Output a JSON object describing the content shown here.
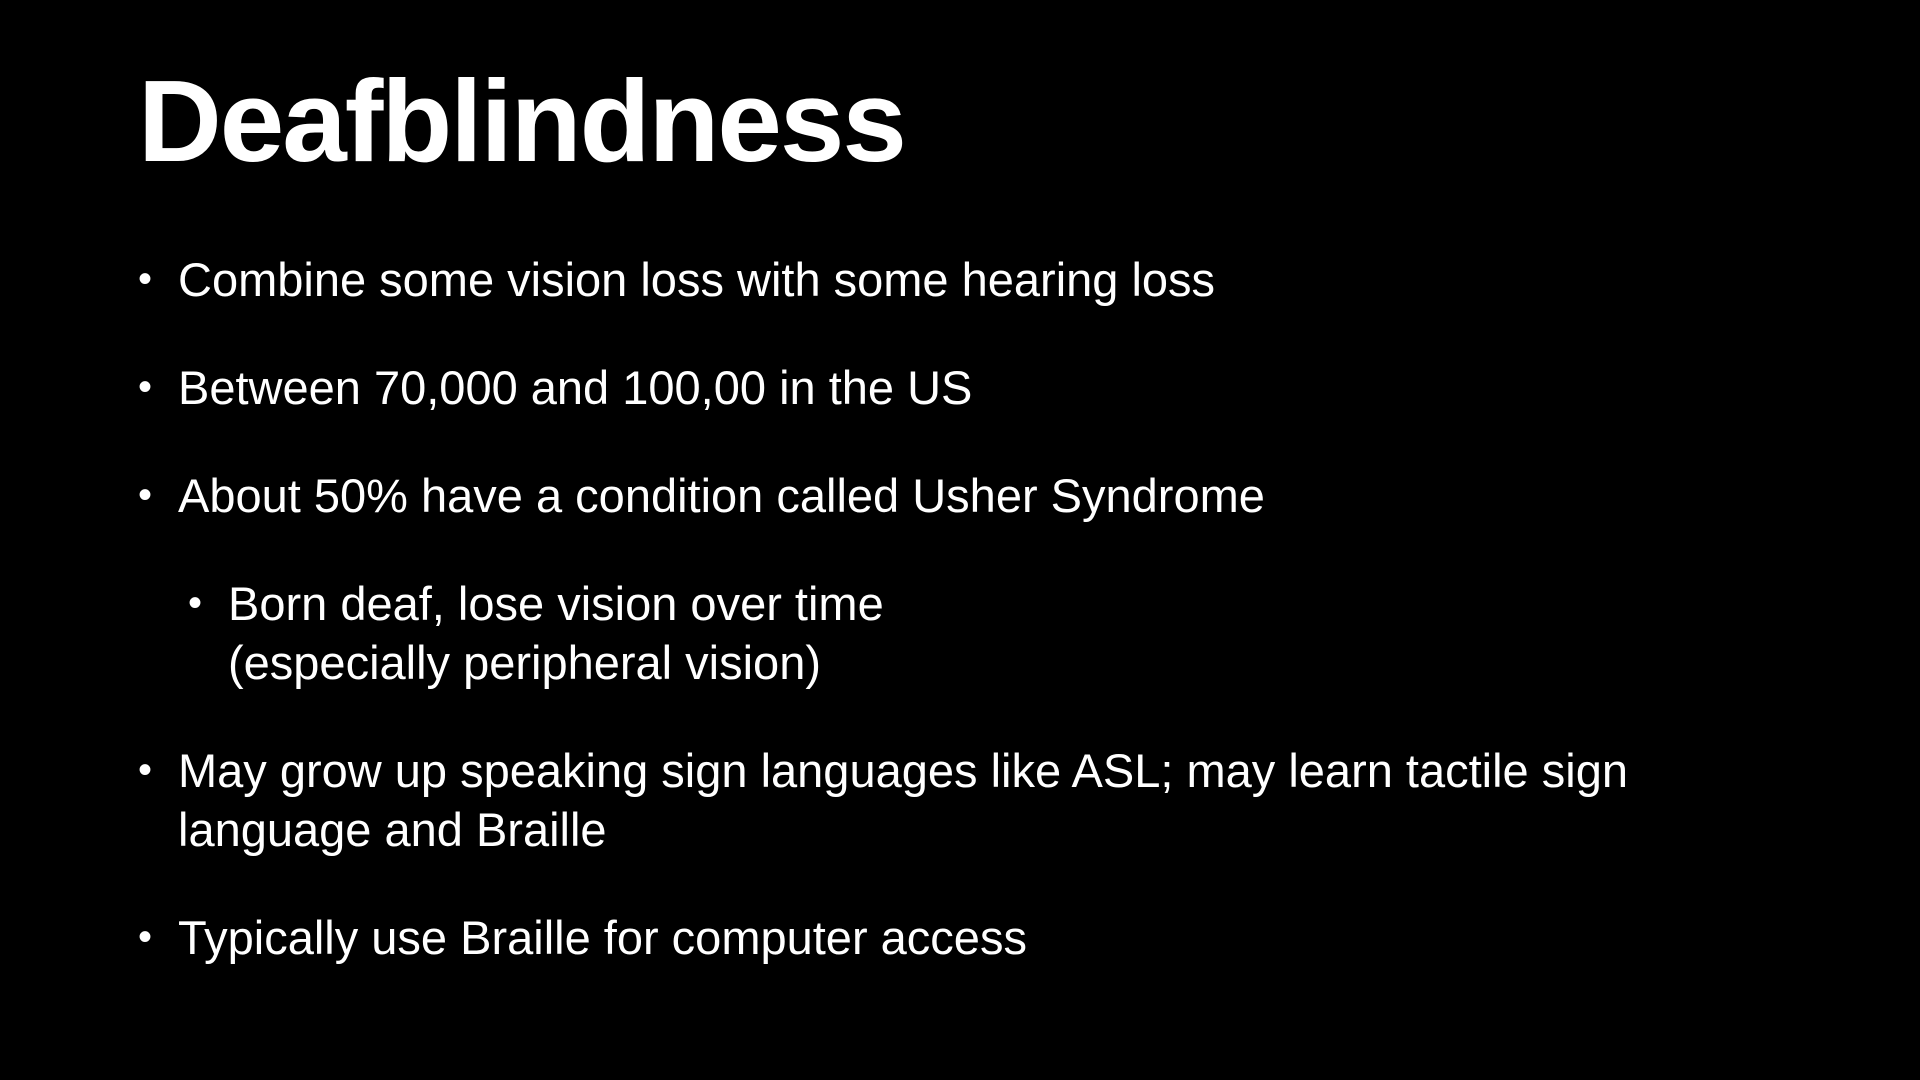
{
  "slide": {
    "title": "Deafblindness",
    "bullet_glyph": "•",
    "bullets": [
      {
        "level": 1,
        "lines": [
          "Combine some vision loss with some hearing loss"
        ]
      },
      {
        "level": 1,
        "lines": [
          "Between 70,000 and 100,00 in the US"
        ]
      },
      {
        "level": 1,
        "lines": [
          "About 50% have a condition called Usher Syndrome"
        ]
      },
      {
        "level": 2,
        "lines": [
          "Born deaf, lose vision over time",
          "(especially peripheral vision)"
        ]
      },
      {
        "level": 1,
        "lines": [
          "May grow up speaking sign languages like ASL; may learn tactile sign",
          "language and Braille"
        ]
      },
      {
        "level": 1,
        "lines": [
          "Typically use Braille for computer access"
        ]
      }
    ]
  },
  "colors": {
    "background": "#000000",
    "text": "#ffffff"
  }
}
